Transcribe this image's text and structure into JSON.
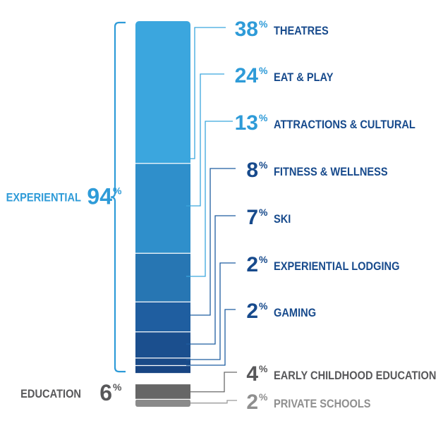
{
  "chart_data": {
    "type": "bar",
    "stacked": true,
    "orientation": "vertical",
    "groups": [
      {
        "label": "EXPERIENTIAL",
        "value": 94,
        "value_unit": "%",
        "color": "#3aa6dd",
        "segments": [
          {
            "label": "THEATRES",
            "value": 38,
            "color": "#3ba6de"
          },
          {
            "label": "EAT & PLAY",
            "value": 24,
            "color": "#2f8fcb"
          },
          {
            "label": "ATTRACTIONS & CULTURAL",
            "value": 13,
            "color": "#2776b3"
          },
          {
            "label": "FITNESS & WELLNESS",
            "value": 8,
            "color": "#1f5ea0"
          },
          {
            "label": "SKI",
            "value": 7,
            "color": "#1b4f8e"
          },
          {
            "label": "EXPERIENTIAL LODGING",
            "value": 2,
            "color": "#1a4a88"
          },
          {
            "label": "GAMING",
            "value": 2,
            "color": "#184583"
          }
        ]
      },
      {
        "label": "EDUCATION",
        "value": 6,
        "value_unit": "%",
        "color": "#58585a",
        "segments": [
          {
            "label": "EARLY CHILDHOOD EDUCATION",
            "value": 4,
            "color": "#666666"
          },
          {
            "label": "PRIVATE SCHOOLS",
            "value": 2,
            "color": "#8a8a8a"
          }
        ]
      }
    ],
    "value_unit": "%",
    "label_colors": {
      "experiential_value": "#2e9bd8",
      "experiential_label": "#174a8c",
      "education_value": "#58585a",
      "education_label": "#58585a",
      "private_schools": "#8f8f8f"
    }
  }
}
